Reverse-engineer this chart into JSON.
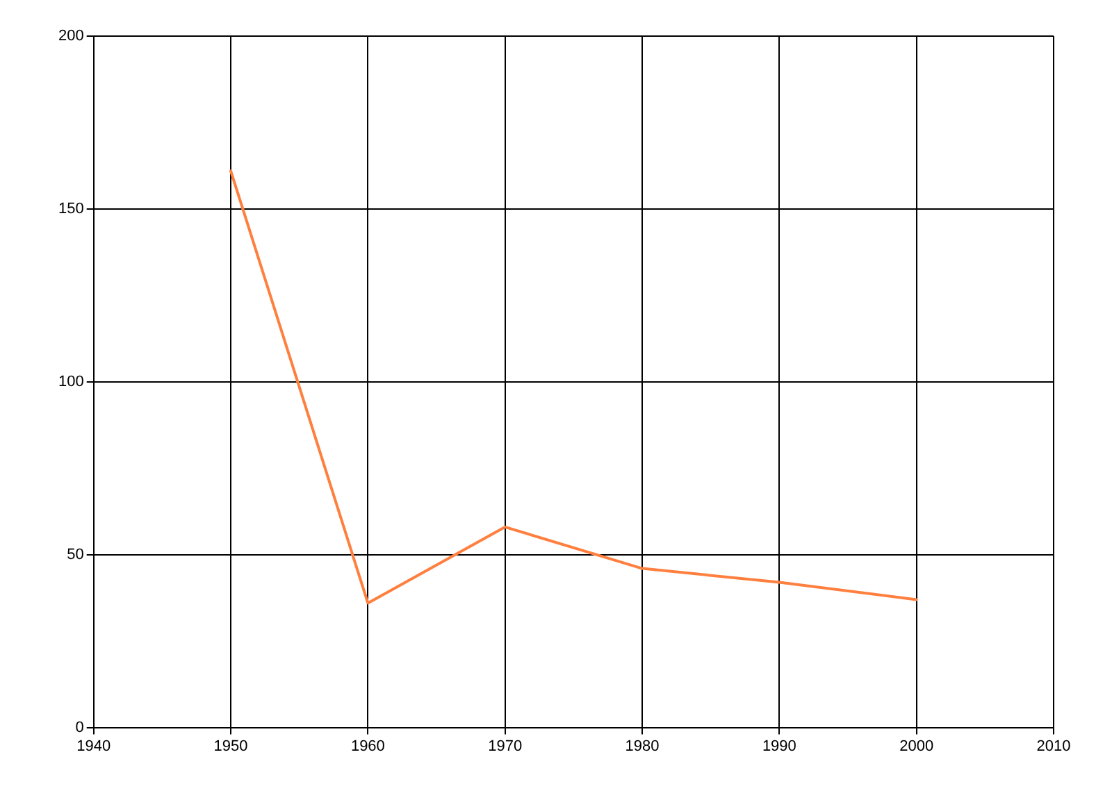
{
  "chart_data": {
    "type": "line",
    "x": [
      1950,
      1960,
      1970,
      1980,
      1990,
      2000
    ],
    "series": [
      {
        "color": "#ff7f3f",
        "values": [
          161,
          36,
          58,
          46,
          42,
          37
        ]
      }
    ],
    "xlim": [
      1940,
      2010
    ],
    "xticks": [
      1940,
      1950,
      1960,
      1970,
      1980,
      1990,
      2000,
      2010
    ],
    "ylim": [
      0,
      200
    ],
    "yticks": [
      0,
      50,
      100,
      150,
      200
    ],
    "grid": true,
    "legend": false,
    "marker": "none",
    "line_style": "solid"
  }
}
